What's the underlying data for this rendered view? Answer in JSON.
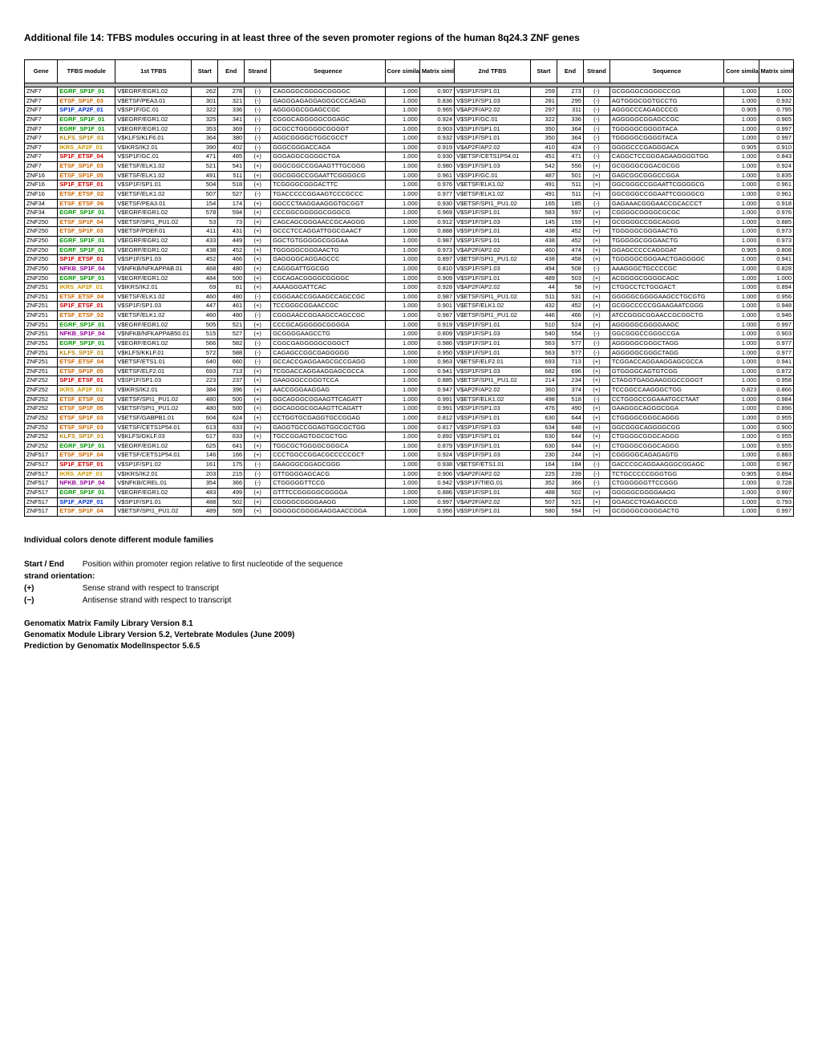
{
  "title": "Additional file 14: TFBS modules occuring in at least three of the seven promoter regions of the human 8q24.3 ZNF genes",
  "columns": [
    "Gene",
    "TFBS module",
    "1st TFBS",
    "Start",
    "End",
    "Strand",
    "Sequence",
    "Core similarity",
    "Matrix similarity",
    "2nd TFBS",
    "Start",
    "End",
    "Strand",
    "Sequence",
    "Core similarity",
    "Matrix similarity"
  ],
  "module_colors": {
    "EGRF_SP1F_01": "#009900",
    "ETSF_SP1F_03": "#cc6600",
    "SP1F_AP2F_01": "#0033cc",
    "KLFS_SP1F_01": "#b8860e",
    "IKRS_AP2F_01": "#cc9900",
    "SP1F_ETSF_04": "#cc0000",
    "ETSF_SP1F_05": "#cc6600",
    "SP1F_ETSF_01": "#cc0000",
    "ETSF_ETSF_02": "#cc6600",
    "ETSF_ETSF_06": "#cc6600",
    "ETSF_SP1F_04": "#cc6600",
    "NFKB_SP1F_04": "#990099",
    "IKRS_SP1F_01": "#cc9900",
    "ETSF_ETSF_04": "#cc6600",
    "SP1F_ETSF_02": "#cc0000",
    "EGRF_SP1F_02": "#009900",
    "ETSF_SP1F_06": "#cc6600"
  },
  "rows": [
    [
      "ZNF7",
      "EGRF_SP1F_01",
      "V$EGRF/EGR1.02",
      262,
      278,
      "(-)",
      "CAGGGGCGGGGCGGGGC",
      1.0,
      0.907,
      "V$SP1F/SP1.01",
      259,
      273,
      "(-)",
      "GCGGGGCGGGGCCGG",
      1.0,
      1.0
    ],
    [
      "ZNF7",
      "ETSF_SP1F_03",
      "V$ETSF/PEA3.01",
      301,
      321,
      "(-)",
      "GAGGGAGAGGAGGGCCCAGAG",
      1.0,
      0.836,
      "V$SP1F/SP1.03",
      281,
      295,
      "(-)",
      "AGTGGGCGGTGCCTG",
      1.0,
      0.932
    ],
    [
      "ZNF7",
      "SP1F_AP2F_01",
      "V$SP1F/GC.01",
      322,
      336,
      "(-)",
      "AGGGGGCGGAGCCGC",
      1.0,
      0.965,
      "V$AP2F/AP2.02",
      297,
      311,
      "(-)",
      "AGGGCCCAGAGCCCG",
      0.905,
      0.795
    ],
    [
      "ZNF7",
      "EGRF_SP1F_01",
      "V$EGRF/EGR1.02",
      325,
      341,
      "(-)",
      "CGGGCAGGGGGCGGAGC",
      1.0,
      0.924,
      "V$SP1F/GC.01",
      322,
      336,
      "(-)",
      "AGGGGGCGGAGCCGC",
      1.0,
      0.965
    ],
    [
      "ZNF7",
      "EGRF_SP1F_01",
      "V$EGRF/EGR1.02",
      353,
      369,
      "(-)",
      "GCGCCTGGGGGCGGGGT",
      1.0,
      0.903,
      "V$SP1F/SP1.01",
      350,
      364,
      "(-)",
      "TGGGGGCGGGGTACA",
      1.0,
      0.997
    ],
    [
      "ZNF7",
      "KLFS_SP1F_01",
      "V$KLFS/KLF6.01",
      364,
      380,
      "(-)",
      "AGGCGGGGCTGGCGCCT",
      1.0,
      0.932,
      "V$SP1F/SP1.01",
      350,
      364,
      "(-)",
      "TGGGGGCGGGGTACA",
      1.0,
      0.997
    ],
    [
      "ZNF7",
      "IKRS_AP2F_01",
      "V$IKRS/IK2.01",
      390,
      402,
      "(-)",
      "GGGCGGGACCAGA",
      1.0,
      0.919,
      "V$AP2F/AP2.02",
      410,
      424,
      "(-)",
      "GGGGCCCGAGGGACA",
      0.905,
      0.91
    ],
    [
      "ZNF7",
      "SP1F_ETSF_04",
      "V$SP1F/GC.01",
      471,
      485,
      "(+)",
      "GGGAGGCGGGGCTGA",
      1.0,
      0.93,
      "V$ETSF/CETS1P54.01",
      451,
      471,
      "(-)",
      "CAGGCTCCGGGAGAAGGGGTGG",
      1.0,
      0.843
    ],
    [
      "ZNF7",
      "ETSF_SP1F_03",
      "V$ETSF/ELK1.02",
      521,
      541,
      "(+)",
      "GGGCGGCCGGAAGTTTGCGGG",
      1.0,
      0.98,
      "V$SP1F/SP1.03",
      542,
      556,
      "(+)",
      "GCGGGGCGGACGCGG",
      1.0,
      0.924
    ],
    [
      "ZNF16",
      "ETSF_SP1F_05",
      "V$ETSF/ELK1.02",
      491,
      511,
      "(+)",
      "GGCGGGCCGGAATTCGGGGCG",
      1.0,
      0.961,
      "V$SP1F/GC.01",
      487,
      501,
      "(+)",
      "GAGCGGCGGGCCGGA",
      1.0,
      0.835
    ],
    [
      "ZNF16",
      "SP1F_ETSF_01",
      "V$SP1F/SP1.01",
      504,
      518,
      "(+)",
      "TCGGGGCGGGACTTC",
      1.0,
      0.976,
      "V$ETSF/ELK1.02",
      491,
      511,
      "(+)",
      "GGCGGGCCGGAATTCGGGGCG",
      1.0,
      0.961
    ],
    [
      "ZNF16",
      "ETSF_ETSF_02",
      "V$ETSF/ELK1.02",
      507,
      527,
      "(-)",
      "TGACCCCCGGAAGTCCCGCCC",
      1.0,
      0.977,
      "V$ETSF/ELK1.02",
      491,
      511,
      "(+)",
      "GGCGGGCCGGAATTCGGGGCG",
      1.0,
      0.961
    ],
    [
      "ZNF34",
      "ETSF_ETSF_06",
      "V$ETSF/PEA3.01",
      154,
      174,
      "(+)",
      "GGCCCTAAGGAAGGGTGCGGT",
      1.0,
      0.93,
      "V$ETSF/SPI1_PU1.02",
      165,
      185,
      "(-)",
      "GAGAAACGGGAACCGCACCCT",
      1.0,
      0.918
    ],
    [
      "ZNF34",
      "EGRF_SP1F_01",
      "V$EGRF/EGR1.02",
      578,
      594,
      "(+)",
      "CCCGGCGGGGGCGGGCG",
      1.0,
      0.969,
      "V$SP1F/SP1.01",
      583,
      597,
      "(+)",
      "CGGGGCGGGGCGCGC",
      1.0,
      0.976
    ],
    [
      "ZNF250",
      "ETSF_SP1F_04",
      "V$ETSF/SPI1_PU1.02",
      53,
      73,
      "(+)",
      "CAGCAGCGGGAACCGCAAGGG",
      1.0,
      0.912,
      "V$SP1F/SP1.03",
      145,
      159,
      "(+)",
      "GCGGGGCCGGCAGGG",
      1.0,
      0.885
    ],
    [
      "ZNF250",
      "ETSF_SP1F_03",
      "V$ETSF/PDEF.01",
      411,
      431,
      "(+)",
      "GCCCTCCAGGATTGGCGAACT",
      1.0,
      0.888,
      "V$SP1F/SP1.01",
      438,
      452,
      "(+)",
      "TGGGGGCGGGAACTG",
      1.0,
      0.973
    ],
    [
      "ZNF250",
      "EGRF_SP1F_01",
      "V$EGRF/EGR1.02",
      433,
      449,
      "(+)",
      "GGCTGTGGGGGCGGGAA",
      1.0,
      0.987,
      "V$SP1F/SP1.01",
      438,
      452,
      "(+)",
      "TGGGGGCGGGAACTG",
      1.0,
      0.973
    ],
    [
      "ZNF250",
      "EGRF_SP1F_01",
      "V$EGRF/EGR1.02",
      438,
      452,
      "(+)",
      "TGGGGGCGGGAACTG",
      1.0,
      0.973,
      "V$AP2F/AP2.02",
      460,
      474,
      "(+)",
      "GGAGCCCCCAGGGAT",
      0.905,
      0.808
    ],
    [
      "ZNF250",
      "SP1F_ETSF_01",
      "V$SP1F/SP1.03",
      452,
      466,
      "(+)",
      "GAGGGGCAGGAGCCC",
      1.0,
      0.897,
      "V$ETSF/SPI1_PU1.02",
      438,
      458,
      "(+)",
      "TGGGGGCGGGAACTGAGGGGC",
      1.0,
      0.941
    ],
    [
      "ZNF250",
      "NFKB_SP1F_04",
      "V$NFKB/NFKAPPAB.01",
      468,
      480,
      "(+)",
      "CAGGGATTGGCGG",
      1.0,
      0.81,
      "V$SP1F/SP1.03",
      494,
      508,
      "(-)",
      "AAAGGGCTGCCCCGC",
      1.0,
      0.828
    ],
    [
      "ZNF250",
      "EGRF_SP1F_01",
      "V$EGRF/EGR1.02",
      484,
      500,
      "(+)",
      "CGCAGACGGGGCGGGGC",
      1.0,
      0.909,
      "V$SP1F/SP1.01",
      489,
      503,
      "(+)",
      "ACGGGGCGGGGCAGC",
      1.0,
      1.0
    ],
    [
      "ZNF251",
      "IKRS_AP2F_01",
      "V$IKRS/IK2.01",
      69,
      81,
      "(+)",
      "AAAAGGGATTCAC",
      1.0,
      0.928,
      "V$AP2F/AP2.02",
      44,
      58,
      "(+)",
      "CTGGCCTCTGGGACT",
      1.0,
      0.894
    ],
    [
      "ZNF251",
      "ETSF_ETSF_04",
      "V$ETSF/ELK1.02",
      460,
      480,
      "(-)",
      "CGGGAACCGGAAGCCAGCCGC",
      1.0,
      0.987,
      "V$ETSF/SPI1_PU1.02",
      511,
      531,
      "(+)",
      "GGGGGCGGGGAAGCCTGCGTG",
      1.0,
      0.956
    ],
    [
      "ZNF251",
      "SP1F_ETSF_01",
      "V$SP1F/SP1.03",
      447,
      461,
      "(+)",
      "TCCGGGCGGAACCGC",
      1.0,
      0.901,
      "V$ETSF/ELK1.02",
      432,
      452,
      "(+)",
      "GCGGCCCCCGGAAGAATCGGG",
      1.0,
      0.948
    ],
    [
      "ZNF251",
      "ETSF_ETSF_02",
      "V$ETSF/ELK1.02",
      460,
      480,
      "(-)",
      "CGGGAACCGGAAGCCAGCCGC",
      1.0,
      0.987,
      "V$ETSF/SPI1_PU1.02",
      446,
      466,
      "(+)",
      "ATCCGGGCGGAACCGCGGCTG",
      1.0,
      0.946
    ],
    [
      "ZNF251",
      "EGRF_SP1F_01",
      "V$EGRF/EGR1.02",
      505,
      521,
      "(+)",
      "CCCGCAGGGGGCGGGGA",
      1.0,
      0.919,
      "V$SP1F/SP1.01",
      510,
      524,
      "(+)",
      "AGGGGGCGGGGAAGC",
      1.0,
      0.997
    ],
    [
      "ZNF251",
      "NFKB_SP1F_04",
      "V$NFKB/NFKAPPAB50.01",
      515,
      527,
      "(+)",
      "GCGGGGAAGCCTG",
      1.0,
      0.809,
      "V$SP1F/SP1.03",
      540,
      554,
      "(-)",
      "GGCGGGCCGGGCCGA",
      1.0,
      0.903
    ],
    [
      "ZNF251",
      "EGRF_SP1F_01",
      "V$EGRF/EGR1.02",
      566,
      582,
      "(-)",
      "CGGCGAGGGGGCGGGCT",
      1.0,
      0.986,
      "V$SP1F/SP1.01",
      563,
      577,
      "(-)",
      "AGGGGGCGGGCTAGG",
      1.0,
      0.977
    ],
    [
      "ZNF251",
      "KLFS_SP1F_01",
      "V$KLFS/KKLF.01",
      572,
      588,
      "(-)",
      "CAGAGCCGGCGAGGGGG",
      1.0,
      0.95,
      "V$SP1F/SP1.01",
      563,
      577,
      "(-)",
      "AGGGGGCGGGCTAGG",
      1.0,
      0.977
    ],
    [
      "ZNF251",
      "ETSF_ETSF_04",
      "V$ETSF/ETS1.01",
      640,
      660,
      "(-)",
      "GCCACCGAGGAAGCGCCGAGG",
      1.0,
      0.963,
      "V$ETSF/ELF2.01",
      693,
      713,
      "(+)",
      "TCGGACCAGGAAGGAGCGCCA",
      1.0,
      0.941
    ],
    [
      "ZNF251",
      "ETSF_SP1F_05",
      "V$ETSF/ELF2.01",
      693,
      713,
      "(+)",
      "TCGGACCAGGAAGGAGCGCCA",
      1.0,
      0.941,
      "V$SP1F/SP1.03",
      682,
      696,
      "(+)",
      "GTGGGGCAGTGTCGG",
      1.0,
      0.872
    ],
    [
      "ZNF252",
      "SP1F_ETSF_01",
      "V$SP1F/SP1.03",
      223,
      237,
      "(+)",
      "GAAGGGCCGGGTCCA",
      1.0,
      0.885,
      "V$ETSF/SPI1_PU1.02",
      214,
      234,
      "(+)",
      "CTAGGTGAGGAAGGGCCGGGT",
      1.0,
      0.958
    ],
    [
      "ZNF252",
      "IKRS_AP2F_01",
      "V$IKRS/IK2.01",
      384,
      396,
      "(+)",
      "AACCGGGAAGGAG",
      1.0,
      0.947,
      "V$AP2F/AP2.02",
      360,
      374,
      "(+)",
      "TCCGGCCAAGGGCTGG",
      0.823,
      0.866
    ],
    [
      "ZNF252",
      "ETSF_ETSF_02",
      "V$ETSF/SPI1_PU1.02",
      480,
      500,
      "(+)",
      "GGCAGGGCGGAAGTTCAGATT",
      1.0,
      0.991,
      "V$ETSF/ELK1.02",
      498,
      518,
      "(-)",
      "CCTGGGCCGGAAATGCCTAAT",
      1.0,
      0.984
    ],
    [
      "ZNF252",
      "ETSF_SP1F_05",
      "V$ETSF/SPI1_PU1.02",
      480,
      500,
      "(+)",
      "GGCAGGGCGGAAGTTCAGATT",
      1.0,
      0.991,
      "V$SP1F/SP1.03",
      476,
      490,
      "(+)",
      "GAAGGGCAGGGCGGA",
      1.0,
      0.896
    ],
    [
      "ZNF252",
      "ETSF_SP1F_03",
      "V$ETSF/GABPB1.01",
      604,
      624,
      "(+)",
      "CCTGGTGCGAGGTGCCGGAG",
      1.0,
      0.812,
      "V$SP1F/SP1.01",
      630,
      644,
      "(+)",
      "CTGGGGCGGGCAGGG",
      1.0,
      0.955
    ],
    [
      "ZNF252",
      "ETSF_SP1F_03",
      "V$ETSF/CETS1P54.01",
      613,
      633,
      "(+)",
      "GAGGTGCCGGAGTGGCGCTGG",
      1.0,
      0.817,
      "V$SP1F/SP1.03",
      634,
      648,
      "(+)",
      "GGCGGGCAGGGGCGG",
      1.0,
      0.9
    ],
    [
      "ZNF252",
      "KLFS_SP1F_01",
      "V$KLFS/GKLF.03",
      617,
      633,
      "(+)",
      "TGCCGGAGTGGCGCTGG",
      1.0,
      0.892,
      "V$SP1F/SP1.01",
      630,
      644,
      "(+)",
      "CTGGGGCGGGCAGGG",
      1.0,
      0.955
    ],
    [
      "ZNF252",
      "EGRF_SP1F_01",
      "V$EGRF/EGR1.02",
      625,
      641,
      "(+)",
      "TGGCGCTGGGGCGGGCA",
      1.0,
      0.879,
      "V$SP1F/SP1.01",
      630,
      644,
      "(+)",
      "CTGGGGCGGGCAGGG",
      1.0,
      0.955
    ],
    [
      "ZNF517",
      "ETSF_SP1F_04",
      "V$ETSF/CETS1P54.01",
      146,
      166,
      "(+)",
      "CCCTGGCCGGACGCCCCCGCT",
      1.0,
      0.924,
      "V$SP1F/SP1.03",
      230,
      244,
      "(+)",
      "CGGGGGCAGAGAGTG",
      1.0,
      0.883
    ],
    [
      "ZNF517",
      "SP1F_ETSF_01",
      "V$SP1F/SP1.02",
      161,
      175,
      "(-)",
      "GAAGGGCGGAGCGGG",
      1.0,
      0.938,
      "V$ETSF/ETS1.01",
      164,
      184,
      "(-)",
      "GACCCGCAGGAAGGGCGGAGC",
      1.0,
      0.967
    ],
    [
      "ZNF517",
      "IKRS_AP2F_01",
      "V$IKRS/IK2.01",
      203,
      215,
      "(-)",
      "GTTGGGGAGCACG",
      1.0,
      0.906,
      "V$AP2F/AP2.02",
      225,
      239,
      "(-)",
      "TCTGCCCCCGGGTGG",
      0.905,
      0.894
    ],
    [
      "ZNF517",
      "NFKB_SP1F_04",
      "V$NFKB/CREL.01",
      354,
      366,
      "(-)",
      "CTGGGGGTTCCG",
      1.0,
      0.942,
      "V$SP1F/TIEG.01",
      352,
      366,
      "(-)",
      "CTGGGGGGTTCCGGG",
      1.0,
      0.728
    ],
    [
      "ZNF517",
      "EGRF_SP1F_01",
      "V$EGRF/EGR1.02",
      483,
      499,
      "(+)",
      "GTTTCCGGGGGCGGGGA",
      1.0,
      0.886,
      "V$SP1F/SP1.01",
      488,
      502,
      "(+)",
      "GGGGGCGGGGAAGG",
      1.0,
      0.997
    ],
    [
      "ZNF517",
      "SP1F_AP2F_01",
      "V$SP1F/SP1.01",
      488,
      502,
      "(+)",
      "CGGGGCGGGGAAGG",
      1.0,
      0.997,
      "V$AP2F/AP2.02",
      507,
      521,
      "(+)",
      "GGAGCCTGAGAGCCG",
      1.0,
      0.793
    ],
    [
      "ZNF517",
      "ETSF_SP1F_04",
      "V$ETSF/SPI1_PU1.02",
      489,
      509,
      "(+)",
      "GGGGGCGGGGAAGGAACCGGA",
      1.0,
      0.956,
      "V$SP1F/SP1.01",
      580,
      594,
      "(+)",
      "GCGGGGCGGGGACTG",
      1.0,
      0.997
    ]
  ],
  "notes": {
    "colors_note": "Individual colors denote different module families",
    "startend_label": "Start / End",
    "startend_text": "Position within promoter region relative to first nucleotide of the sequence",
    "strand_label": "strand orientation:",
    "plus_label": "(+)",
    "plus_text": "Sense strand with respect to transcript",
    "minus_label": "(−)",
    "minus_text": "Antisense strand with respect to transcript"
  },
  "sources": [
    "Genomatix Matrix Family Library Version 8.1",
    "Genomatix Module Library Version 5.2, Vertebrate Modules (June 2009)",
    "Prediction by Genomatix ModelInspector 5.6.5"
  ]
}
